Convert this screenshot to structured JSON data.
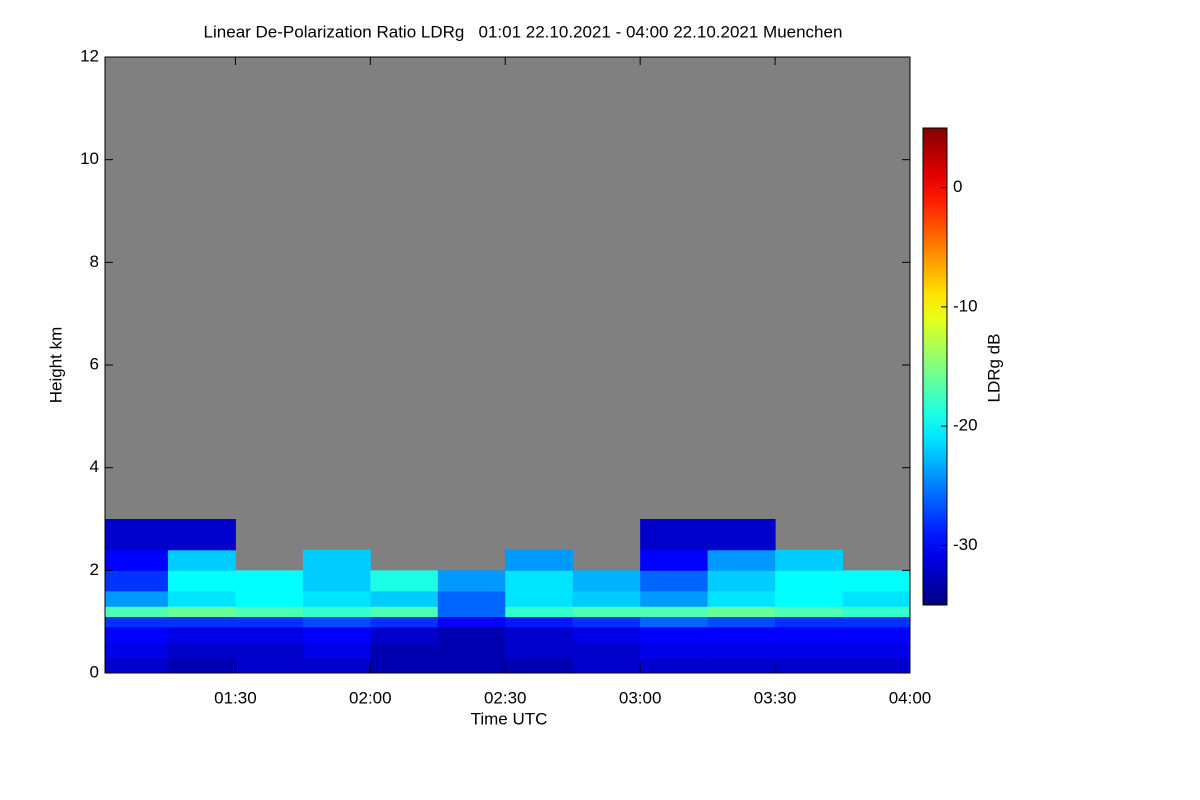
{
  "chart_data": {
    "type": "heatmap",
    "title": "Linear De-Polarization Ratio LDRg   01:01 22.10.2021 - 04:00 22.10.2021 Muenchen",
    "x_label": "Time UTC",
    "y_label": "Height km",
    "colorbar_label": "LDRg dB",
    "xlim": [
      1.0167,
      4.0
    ],
    "xticks": [
      {
        "value": 1.5,
        "label": "01:30"
      },
      {
        "value": 2.0,
        "label": "02:00"
      },
      {
        "value": 2.5,
        "label": "02:30"
      },
      {
        "value": 3.0,
        "label": "03:00"
      },
      {
        "value": 3.5,
        "label": "03:30"
      },
      {
        "value": 4.0,
        "label": "04:00"
      }
    ],
    "ylim": [
      0,
      12
    ],
    "yticks": [
      0,
      2,
      4,
      6,
      8,
      10,
      12
    ],
    "zlim": [
      -35,
      5
    ],
    "zticks": [
      0,
      -10,
      -20,
      -30
    ],
    "colormap": "jet",
    "background_color": "#808080",
    "x_bins": [
      1.0167,
      1.25,
      1.5,
      1.75,
      2.0,
      2.25,
      2.5,
      2.75,
      3.0,
      3.25,
      3.5,
      3.75,
      4.0
    ],
    "y_bins": [
      0,
      0.3,
      0.6,
      0.9,
      1.1,
      1.3,
      1.6,
      2.0,
      2.4,
      3.0
    ],
    "z": [
      [
        -32,
        -33,
        -32,
        -32,
        -33,
        -33,
        -33,
        -32,
        -32,
        -32,
        -32,
        -32
      ],
      [
        -31,
        -32,
        -32,
        -31,
        -33,
        -33,
        -32,
        -32,
        -31,
        -31,
        -31,
        -31
      ],
      [
        -30,
        -31,
        -31,
        -30,
        -32,
        -33,
        -32,
        -31,
        -30,
        -30,
        -30,
        -30
      ],
      [
        -28,
        -28,
        -28,
        -27,
        -28,
        -30,
        -29,
        -28,
        -26,
        -27,
        -28,
        -28
      ],
      [
        -17,
        -16,
        -17,
        -18,
        -17,
        -26,
        -18,
        -17,
        -17,
        -16,
        -17,
        -18
      ],
      [
        -24,
        -21,
        -20,
        -21,
        -22,
        -26,
        -21,
        -22,
        -24,
        -21,
        -20,
        -21
      ],
      [
        -28,
        -20,
        -20,
        -22,
        -19,
        -24,
        -21,
        -23,
        -26,
        -22,
        -20,
        -20
      ],
      [
        -30,
        -22,
        null,
        -22,
        null,
        null,
        -24,
        null,
        -30,
        -24,
        -22,
        null
      ],
      [
        -32,
        -32,
        null,
        null,
        null,
        null,
        null,
        null,
        -32,
        -32,
        null,
        null
      ]
    ]
  }
}
